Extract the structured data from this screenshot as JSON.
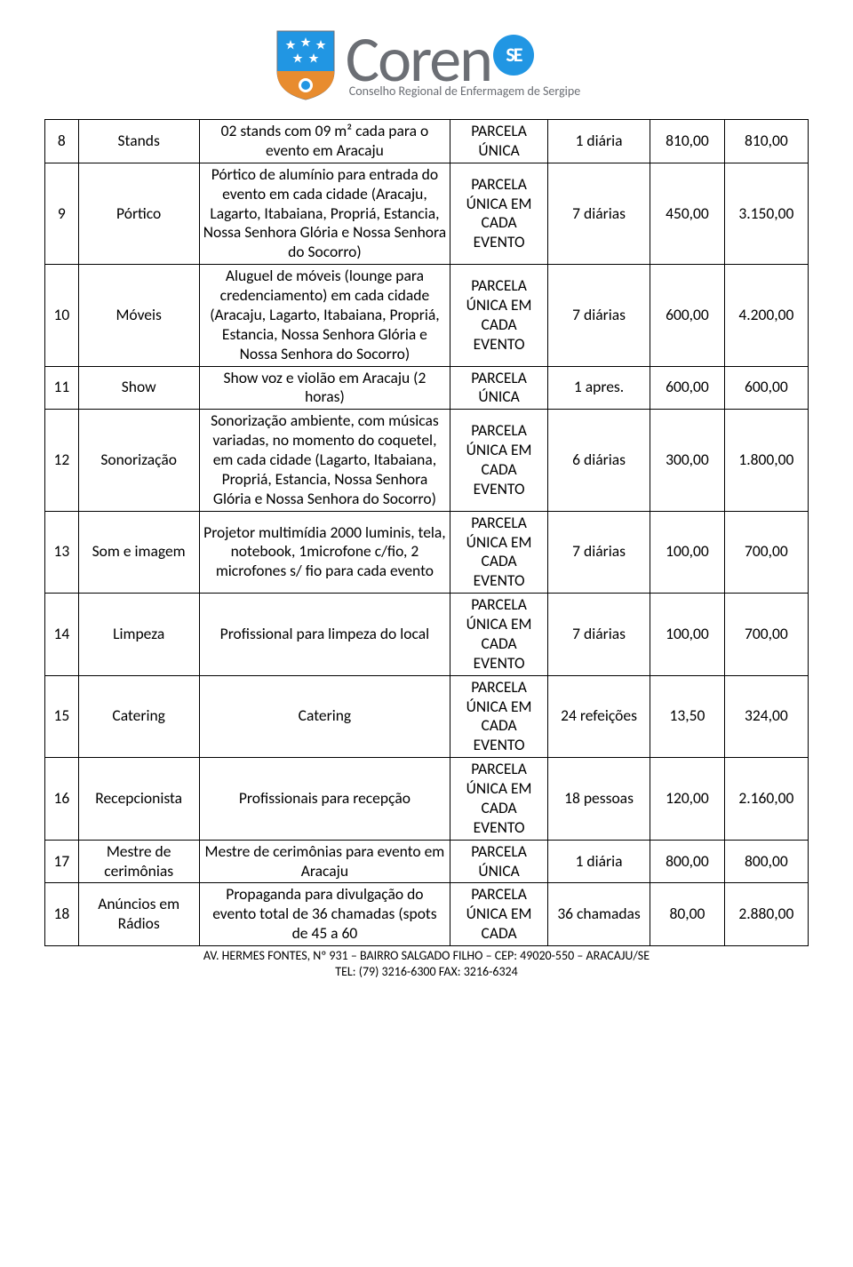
{
  "logo": {
    "brand_name": "Coren",
    "badge_text": "SE",
    "subtitle": "Conselho Regional de Enfermagem de Sergipe",
    "shield_blue": "#2196e3",
    "shield_orange": "#e88c2f",
    "text_gray": "#6b6e74"
  },
  "footer": {
    "line1": "AV. HERMES FONTES, Nº 931 – BAIRRO SALGADO FILHO – CEP: 49020-550 – ARACAJU/SE",
    "line2": "TEL: (79) 3216-6300 FAX: 3216-6324"
  },
  "rows": [
    {
      "n": "8",
      "name": "Stands",
      "desc": "02 stands com 09 m² cada para o evento em Aracaju",
      "parcela": "PARCELA ÚNICA",
      "qtd": "1 diária",
      "v1": "810,00",
      "v2": "810,00"
    },
    {
      "n": "9",
      "name": "Pórtico",
      "desc": "Pórtico de alumínio para entrada do evento em cada cidade (Aracaju, Lagarto, Itabaiana, Propriá, Estancia, Nossa Senhora Glória e Nossa Senhora do Socorro)",
      "parcela": "PARCELA ÚNICA EM CADA EVENTO",
      "qtd": "7 diárias",
      "v1": "450,00",
      "v2": "3.150,00"
    },
    {
      "n": "10",
      "name": "Móveis",
      "desc": "Aluguel de móveis (lounge para credenciamento) em cada cidade (Aracaju, Lagarto, Itabaiana, Propriá, Estancia, Nossa Senhora Glória e Nossa Senhora do Socorro)",
      "parcela": "PARCELA ÚNICA EM CADA EVENTO",
      "qtd": "7 diárias",
      "v1": "600,00",
      "v2": "4.200,00"
    },
    {
      "n": "11",
      "name": "Show",
      "desc": "Show voz e violão em Aracaju (2 horas)",
      "parcela": "PARCELA ÚNICA",
      "qtd": "1 apres.",
      "v1": "600,00",
      "v2": "600,00"
    },
    {
      "n": "12",
      "name": "Sonorização",
      "desc": "Sonorização ambiente, com músicas variadas, no momento do coquetel, em cada cidade (Lagarto, Itabaiana, Propriá, Estancia, Nossa Senhora Glória e Nossa Senhora do Socorro)",
      "parcela": "PARCELA ÚNICA EM CADA EVENTO",
      "qtd": "6 diárias",
      "v1": "300,00",
      "v2": "1.800,00"
    },
    {
      "n": "13",
      "name": "Som e imagem",
      "desc": "Projetor multimídia 2000 luminis, tela, notebook, 1microfone c/fio, 2 microfones s/ fio para  cada evento",
      "parcela": "PARCELA ÚNICA EM CADA EVENTO",
      "qtd": "7 diárias",
      "v1": "100,00",
      "v2": "700,00"
    },
    {
      "n": "14",
      "name": "Limpeza",
      "desc": "Profissional para limpeza do local",
      "parcela": "PARCELA ÚNICA EM CADA EVENTO",
      "qtd": "7 diárias",
      "v1": "100,00",
      "v2": "700,00"
    },
    {
      "n": "15",
      "name": "Catering",
      "desc": "Catering",
      "parcela": "PARCELA ÚNICA EM CADA EVENTO",
      "qtd": "24 refeições",
      "v1": "13,50",
      "v2": "324,00"
    },
    {
      "n": "16",
      "name": "Recepcionista",
      "desc": "Profissionais para recepção",
      "parcela": "PARCELA ÚNICA EM CADA EVENTO",
      "qtd": "18 pessoas",
      "v1": "120,00",
      "v2": "2.160,00"
    },
    {
      "n": "17",
      "name": "Mestre de cerimônias",
      "desc": "Mestre de cerimônias para evento em Aracaju",
      "parcela": "PARCELA ÚNICA",
      "qtd": "1 diária",
      "v1": "800,00",
      "v2": "800,00"
    },
    {
      "n": "18",
      "name": "Anúncios em Rádios",
      "desc": "Propaganda para divulgação do evento total de 36 chamadas (spots de 45 a 60",
      "parcela": "PARCELA ÚNICA EM CADA",
      "qtd": "36 chamadas",
      "v1": "80,00",
      "v2": "2.880,00"
    }
  ]
}
